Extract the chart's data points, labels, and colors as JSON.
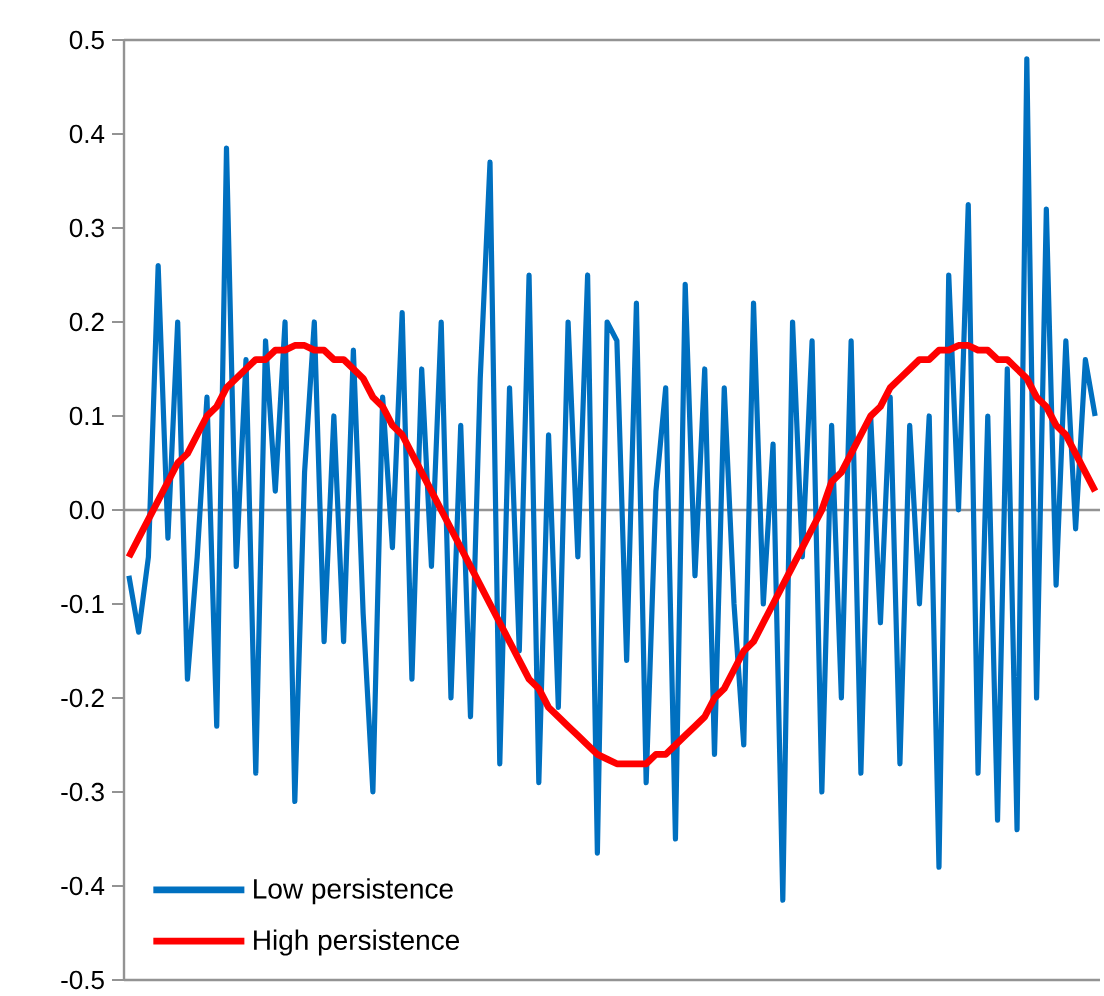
{
  "chart_data": {
    "type": "line",
    "categories": [
      null,
      null,
      null,
      null,
      null,
      null,
      null,
      null,
      null,
      null,
      null,
      null,
      null,
      null,
      null,
      null,
      null,
      null,
      null,
      null,
      null,
      null,
      null,
      null,
      null,
      null,
      null,
      null,
      null,
      null,
      null,
      null,
      null,
      null,
      null,
      null,
      null,
      null,
      null,
      null,
      null,
      null,
      null,
      null,
      null,
      null,
      null,
      null,
      null,
      null,
      null,
      null,
      null,
      null,
      null,
      null,
      null,
      null,
      null,
      null,
      null,
      null,
      null,
      null,
      null,
      null,
      null,
      null,
      null,
      null,
      null,
      null,
      null,
      null,
      null,
      null,
      null,
      null,
      null,
      null,
      null,
      null,
      null,
      null,
      null,
      null,
      null,
      null,
      null,
      null,
      null,
      null,
      null,
      null,
      null,
      null,
      null,
      null,
      null,
      null
    ],
    "series": [
      {
        "name": "Low persistence",
        "color": "#0070c0",
        "values": [
          -0.07,
          -0.13,
          -0.05,
          0.26,
          -0.03,
          0.2,
          -0.18,
          -0.05,
          0.12,
          -0.23,
          0.385,
          -0.06,
          0.16,
          -0.28,
          0.18,
          0.02,
          0.2,
          -0.31,
          0.04,
          0.2,
          -0.14,
          0.1,
          -0.14,
          0.17,
          -0.11,
          -0.3,
          0.12,
          -0.04,
          0.21,
          -0.18,
          0.15,
          -0.06,
          0.2,
          -0.2,
          0.09,
          -0.22,
          0.14,
          0.37,
          -0.27,
          0.13,
          -0.15,
          0.25,
          -0.29,
          0.08,
          -0.21,
          0.2,
          -0.05,
          0.25,
          -0.365,
          0.2,
          0.18,
          -0.16,
          0.22,
          -0.29,
          0.02,
          0.13,
          -0.35,
          0.24,
          -0.07,
          0.15,
          -0.26,
          0.13,
          -0.1,
          -0.25,
          0.22,
          -0.1,
          0.07,
          -0.415,
          0.2,
          -0.05,
          0.18,
          -0.3,
          0.09,
          -0.2,
          0.18,
          -0.28,
          0.1,
          -0.12,
          0.12,
          -0.27,
          0.09,
          -0.1,
          0.1,
          -0.38,
          0.25,
          0.0,
          0.325,
          -0.28,
          0.1,
          -0.33,
          0.15,
          -0.34,
          0.48,
          -0.2,
          0.32,
          -0.08,
          0.18,
          -0.02,
          0.16,
          0.1
        ]
      },
      {
        "name": "High persistence",
        "color": "#ff0000",
        "values": [
          -0.05,
          -0.03,
          -0.01,
          0.01,
          0.03,
          0.05,
          0.06,
          0.08,
          0.1,
          0.11,
          0.13,
          0.14,
          0.15,
          0.16,
          0.16,
          0.17,
          0.17,
          0.175,
          0.175,
          0.17,
          0.17,
          0.16,
          0.16,
          0.15,
          0.14,
          0.12,
          0.11,
          0.09,
          0.08,
          0.06,
          0.04,
          0.02,
          0.0,
          -0.02,
          -0.04,
          -0.06,
          -0.08,
          -0.1,
          -0.12,
          -0.14,
          -0.16,
          -0.18,
          -0.19,
          -0.21,
          -0.22,
          -0.23,
          -0.24,
          -0.25,
          -0.26,
          -0.265,
          -0.27,
          -0.27,
          -0.27,
          -0.27,
          -0.26,
          -0.26,
          -0.25,
          -0.24,
          -0.23,
          -0.22,
          -0.2,
          -0.19,
          -0.17,
          -0.15,
          -0.14,
          -0.12,
          -0.1,
          -0.08,
          -0.06,
          -0.04,
          -0.02,
          0.0,
          0.03,
          0.04,
          0.06,
          0.08,
          0.1,
          0.11,
          0.13,
          0.14,
          0.15,
          0.16,
          0.16,
          0.17,
          0.17,
          0.175,
          0.175,
          0.17,
          0.17,
          0.16,
          0.16,
          0.15,
          0.14,
          0.12,
          0.11,
          0.09,
          0.08,
          0.06,
          0.04,
          0.02
        ]
      }
    ],
    "ylim": [
      -0.5,
      0.5
    ],
    "yticks": [
      {
        "value": -0.5,
        "label": "-0.5"
      },
      {
        "value": -0.4,
        "label": "-0.4"
      },
      {
        "value": -0.3,
        "label": "-0.3"
      },
      {
        "value": -0.2,
        "label": "-0.2"
      },
      {
        "value": -0.1,
        "label": "-0.1"
      },
      {
        "value": 0,
        "label": "0.0"
      },
      {
        "value": 0.1,
        "label": "0.1"
      },
      {
        "value": 0.2,
        "label": "0.2"
      },
      {
        "value": 0.3,
        "label": "0.3"
      },
      {
        "value": 0.4,
        "label": "0.4"
      },
      {
        "value": 0.5,
        "label": "0.5"
      }
    ],
    "legend": "bottom left",
    "tick_labels": "y"
  }
}
